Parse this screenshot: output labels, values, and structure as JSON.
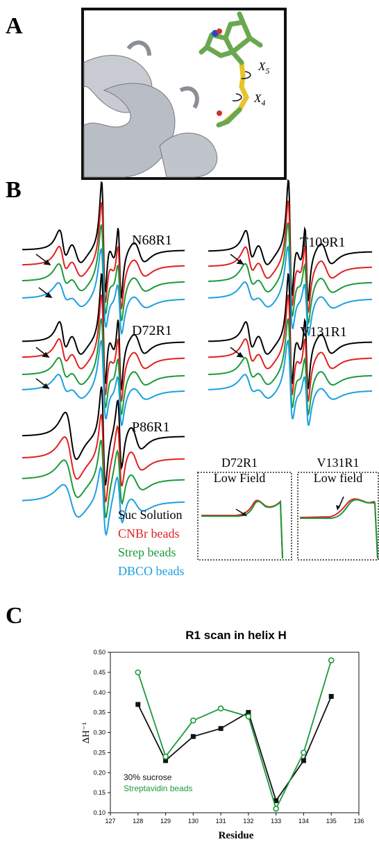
{
  "panel_a": {
    "label": "A",
    "rotations": [
      {
        "symbol": "X",
        "subscript": "5"
      },
      {
        "symbol": "X",
        "subscript": "4"
      }
    ]
  },
  "panel_b": {
    "label": "B",
    "spectra_labels": [
      "N68R1",
      "D72R1",
      "P86R1",
      "T109R1",
      "V131R1"
    ],
    "legend": [
      {
        "text": "Suc Solution",
        "color": "#000000"
      },
      {
        "text": "CNBr beads",
        "color": "#e02020"
      },
      {
        "text": "Strep beads",
        "color": "#1a9a3a"
      },
      {
        "text": "DBCO beads",
        "color": "#1aa0e0"
      }
    ],
    "insets": [
      {
        "title_lines": [
          "D72R1",
          "Low Field"
        ]
      },
      {
        "title_lines": [
          "V131R1",
          "Low field"
        ]
      }
    ]
  },
  "panel_c": {
    "label": "C"
  },
  "chart_data": {
    "type": "line",
    "title": "R1 scan in helix H",
    "xlabel": "Residue",
    "ylabel": "ΔH⁻¹",
    "x": [
      128,
      129,
      130,
      131,
      132,
      133,
      134,
      135
    ],
    "series": [
      {
        "name": "30% sucrose",
        "color": "#111111",
        "marker": "square",
        "values": [
          0.37,
          0.23,
          0.29,
          0.31,
          0.35,
          0.13,
          0.23,
          0.39
        ]
      },
      {
        "name": "Streptavidin beads",
        "color": "#1a9a3a",
        "marker": "circle",
        "values": [
          0.45,
          0.24,
          0.33,
          0.36,
          0.34,
          0.11,
          0.25,
          0.48
        ]
      }
    ],
    "xlim": [
      127,
      136
    ],
    "xticks": [
      127,
      128,
      129,
      130,
      131,
      132,
      133,
      134,
      135,
      136
    ],
    "ylim": [
      0.1,
      0.5
    ],
    "yticks": [
      {
        "value": 0.1,
        "label": "0.10"
      },
      {
        "value": 0.15,
        "label": "0.15"
      },
      {
        "value": 0.2,
        "label": "0.20"
      },
      {
        "value": 0.25,
        "label": "0.25"
      },
      {
        "value": 0.3,
        "label": "0.30"
      },
      {
        "value": 0.35,
        "label": "0.35"
      },
      {
        "value": 0.4,
        "label": "0.40"
      },
      {
        "value": 0.45,
        "label": "0.45"
      },
      {
        "value": 0.5,
        "label": "0.50"
      }
    ]
  }
}
